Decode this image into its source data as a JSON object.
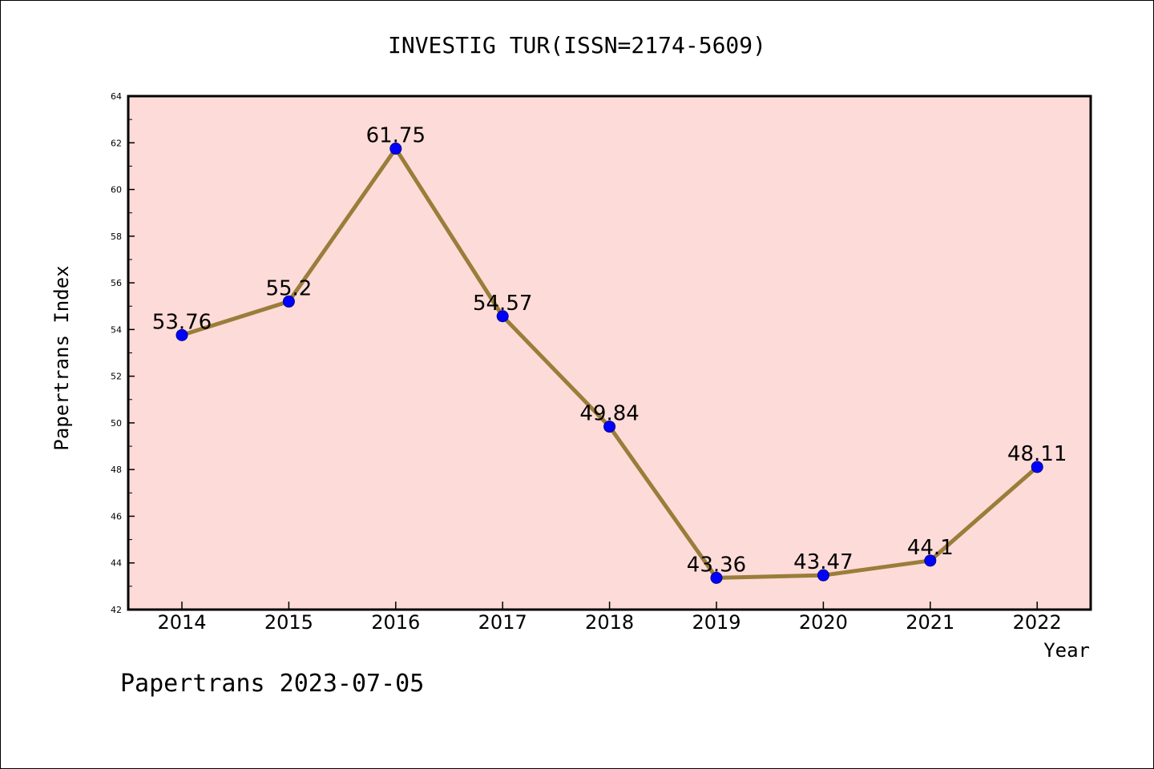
{
  "chart_data": {
    "type": "line",
    "title": "INVESTIG TUR(ISSN=2174-5609)",
    "xlabel": "Year",
    "ylabel": "Papertrans Index",
    "categories": [
      "2014",
      "2015",
      "2016",
      "2017",
      "2018",
      "2019",
      "2020",
      "2021",
      "2022"
    ],
    "series": [
      {
        "values": [
          53.76,
          55.2,
          61.75,
          54.57,
          49.84,
          43.36,
          43.47,
          44.1,
          48.11
        ],
        "labels": [
          "53.76",
          "55.2",
          "61.75",
          "54.57",
          "49.84",
          "43.36",
          "43.47",
          "44.1",
          "48.11"
        ]
      }
    ],
    "ylim": [
      42,
      64
    ],
    "yticks": [
      "42",
      "44",
      "46",
      "48",
      "50",
      "52",
      "54",
      "56",
      "58",
      "60",
      "62",
      "64"
    ],
    "grid": false,
    "legend": "none",
    "colors": {
      "plot_background": "#fddbd8",
      "line": "#9a7d3a",
      "marker": "#0000ff"
    }
  },
  "footer": {
    "text": "Papertrans 2023-07-05"
  }
}
